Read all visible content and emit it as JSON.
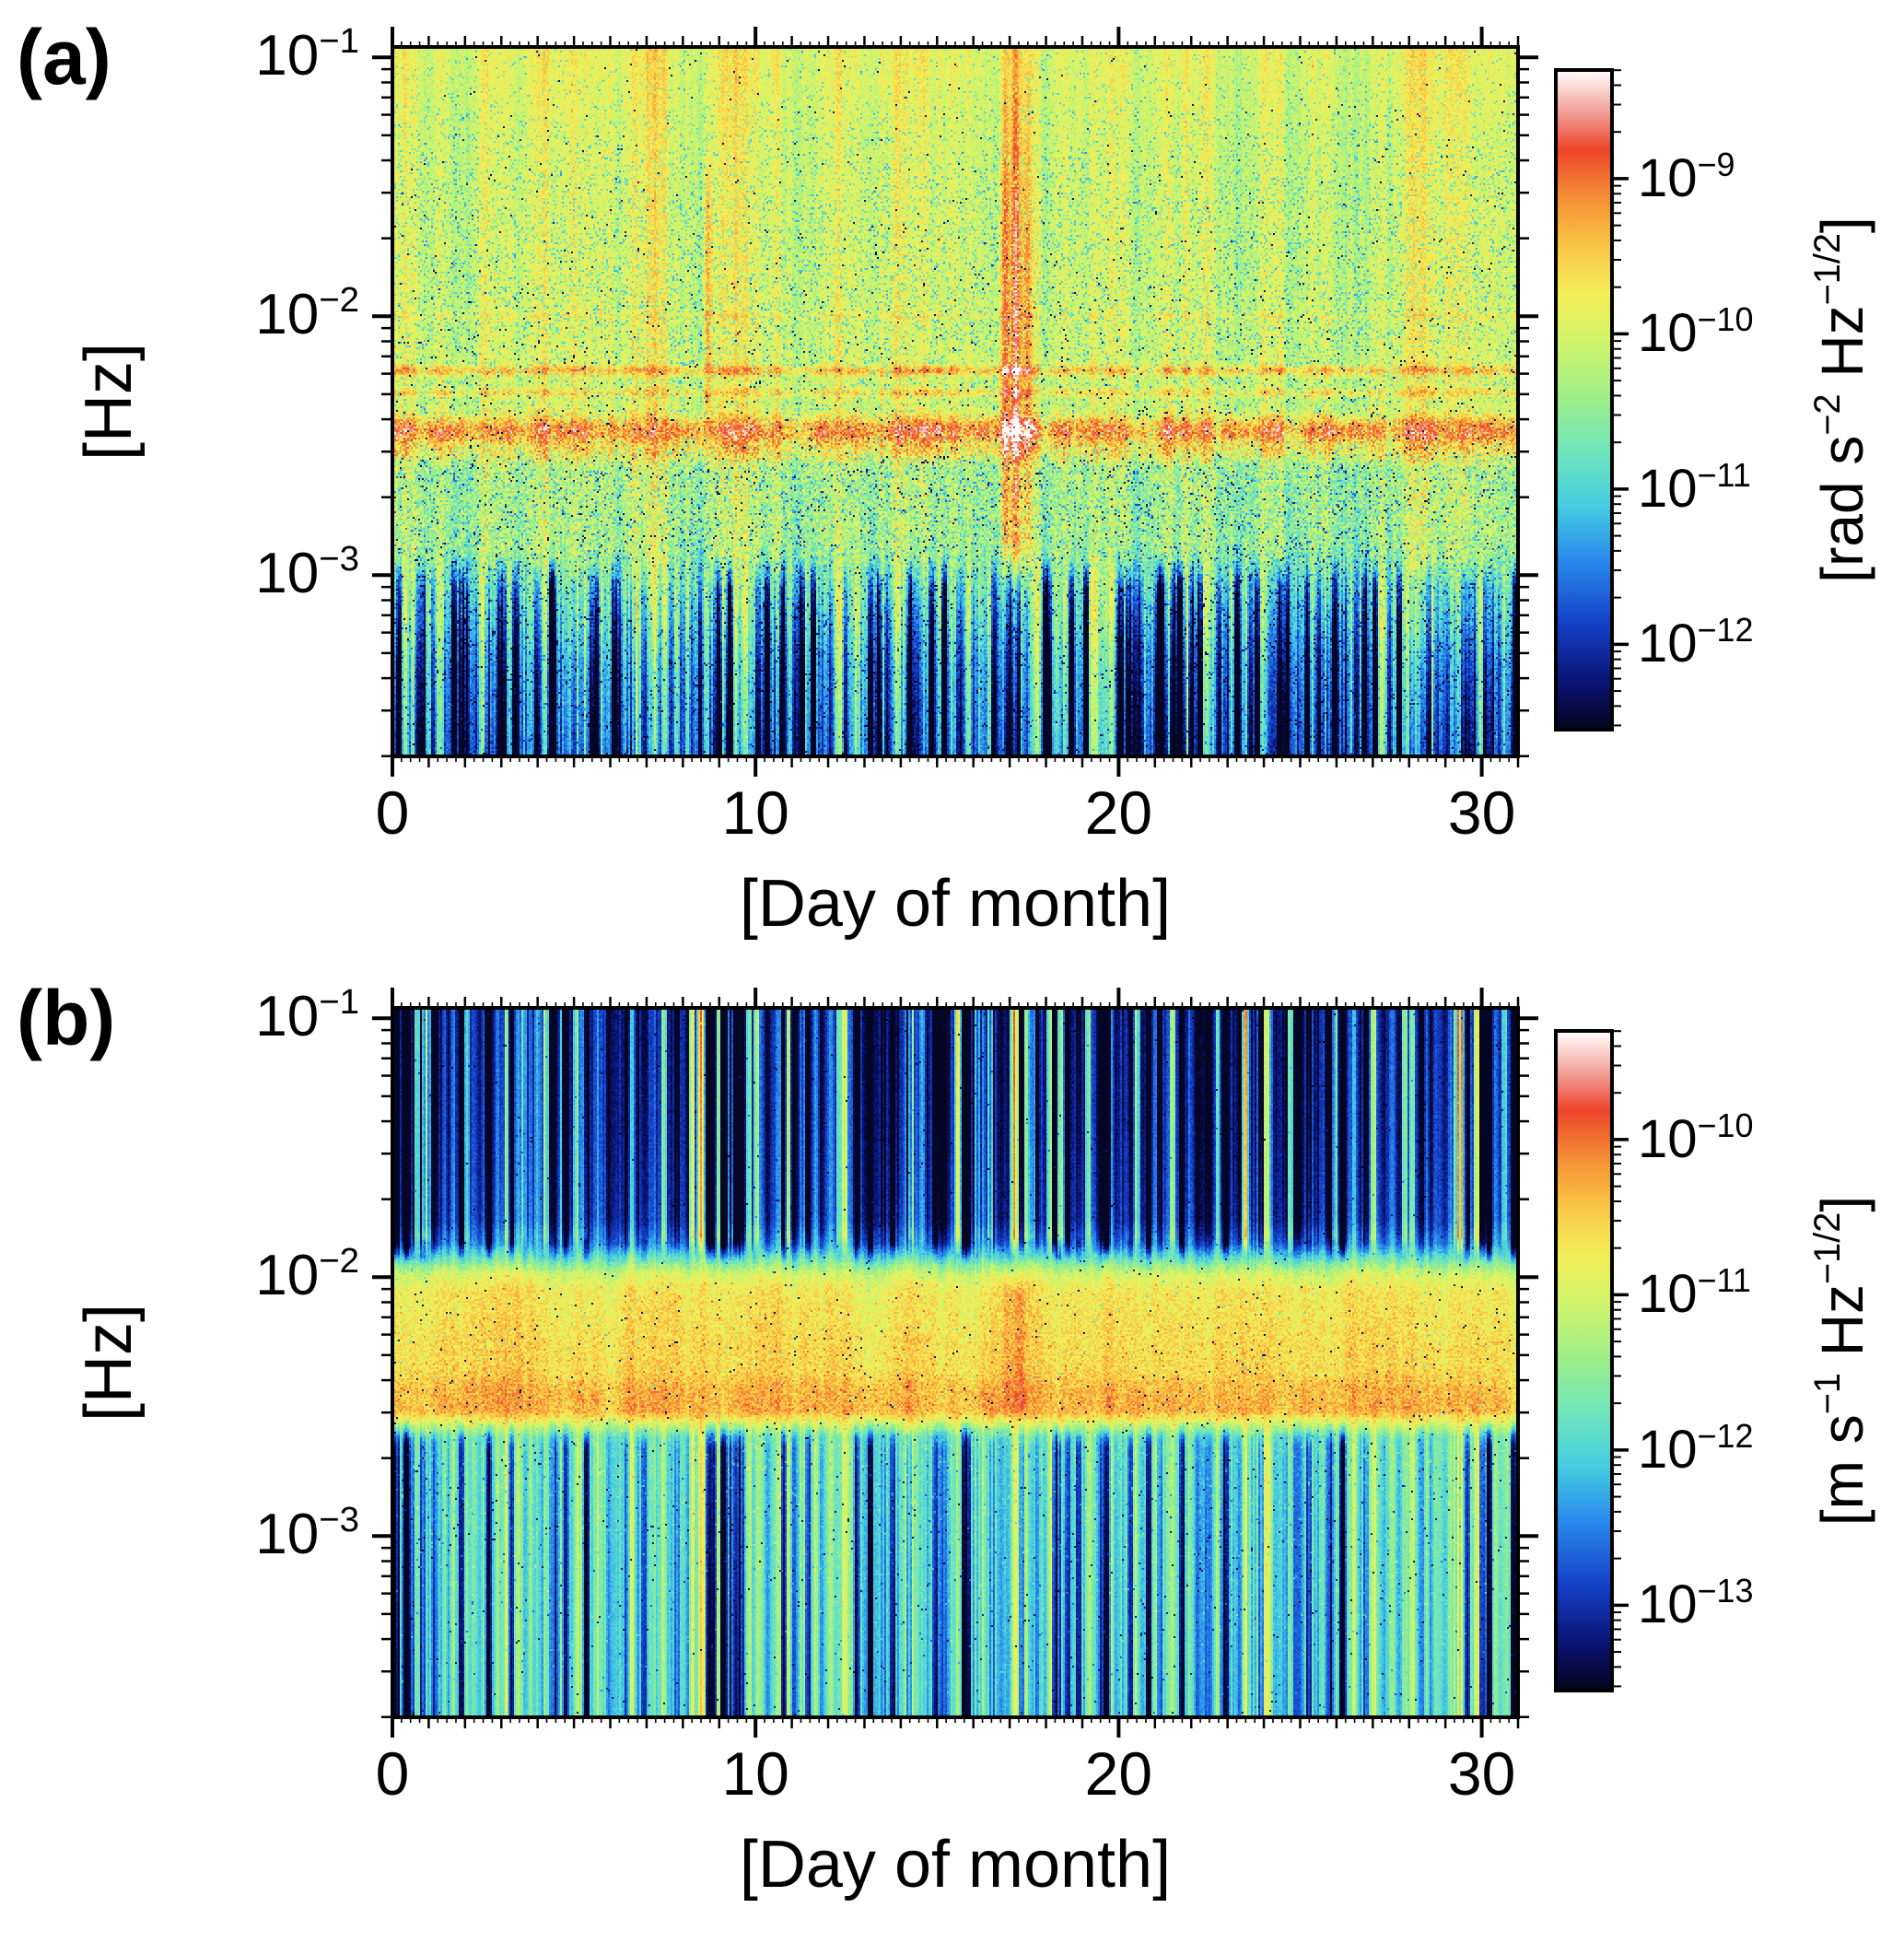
{
  "figure": {
    "colormap": [
      {
        "p": 0.0,
        "c": "#04041c"
      },
      {
        "p": 0.07,
        "c": "#0a1272"
      },
      {
        "p": 0.16,
        "c": "#1440c8"
      },
      {
        "p": 0.26,
        "c": "#2a8cec"
      },
      {
        "p": 0.34,
        "c": "#46cde0"
      },
      {
        "p": 0.42,
        "c": "#6fe5bc"
      },
      {
        "p": 0.5,
        "c": "#9cee8a"
      },
      {
        "p": 0.58,
        "c": "#ccf46d"
      },
      {
        "p": 0.66,
        "c": "#f4ee58"
      },
      {
        "p": 0.74,
        "c": "#f9c243"
      },
      {
        "p": 0.81,
        "c": "#f58b35"
      },
      {
        "p": 0.88,
        "c": "#ec4429"
      },
      {
        "p": 0.93,
        "c": "#f2968e"
      },
      {
        "p": 1.0,
        "c": "#ffffff"
      }
    ],
    "panels": [
      {
        "label": "(a)",
        "y_axis_label": "[Hz]",
        "x_axis_label": "[Day of month]",
        "y_ticks": [
          {
            "base": "10",
            "exp": "−1"
          },
          {
            "base": "10",
            "exp": "−2"
          },
          {
            "base": "10",
            "exp": "−3"
          }
        ],
        "x_ticks": [
          "0",
          "10",
          "20",
          "30"
        ],
        "colorbar_ticks": [
          {
            "base": "10",
            "exp": "−9"
          },
          {
            "base": "10",
            "exp": "−10"
          },
          {
            "base": "10",
            "exp": "−11"
          },
          {
            "base": "10",
            "exp": "−12"
          }
        ],
        "colorbar_unit": [
          {
            "t": "[rad s"
          },
          {
            "sup": "−2"
          },
          {
            "t": " Hz"
          },
          {
            "sup": "−1/2"
          },
          {
            "t": "]"
          }
        ]
      },
      {
        "label": "(b)",
        "y_axis_label": "[Hz]",
        "x_axis_label": "[Day of month]",
        "y_ticks": [
          {
            "base": "10",
            "exp": "−1"
          },
          {
            "base": "10",
            "exp": "−2"
          },
          {
            "base": "10",
            "exp": "−3"
          }
        ],
        "x_ticks": [
          "0",
          "10",
          "20",
          "30"
        ],
        "colorbar_ticks": [
          {
            "base": "10",
            "exp": "−10"
          },
          {
            "base": "10",
            "exp": "−11"
          },
          {
            "base": "10",
            "exp": "−12"
          },
          {
            "base": "10",
            "exp": "−13"
          }
        ],
        "colorbar_unit": [
          {
            "t": "[m s"
          },
          {
            "sup": "−1"
          },
          {
            "t": " Hz"
          },
          {
            "sup": "−1/2"
          },
          {
            "t": "]"
          }
        ]
      }
    ]
  },
  "chart_data": [
    {
      "type": "heatmap",
      "panel": "a",
      "title": "",
      "xlabel": "[Day of month]",
      "ylabel": "[Hz]",
      "zlabel": "[rad s^-2 Hz^-1/2]",
      "x_range": [
        0,
        31
      ],
      "y_log10_range": [
        -3.7,
        -0.96
      ],
      "z_log10_range": [
        -12.55,
        -8.3
      ],
      "x_tick_days": [
        0,
        10,
        20,
        30
      ],
      "y_tick_exponents": [
        -1,
        -2,
        -3
      ],
      "colorbar_tick_exponents": [
        -9,
        -10,
        -11,
        -12
      ],
      "colorbar_exp_top": -8.3,
      "colorbar_exp_bottom": -12.55,
      "features": [
        "persistent strong red band of angular acceleration noise near 3.5e-3 Hz (~1e-9.5 rad s^-2 Hz^-1/2)",
        "secondary orange harmonic lines near 5e-3 and 6e-3 Hz",
        "broadband disturbance around days 17-17.6 spanning ~1e-3 to 1e-1 Hz",
        "narrow transient near day 8.7 between ~5e-3 and 3e-2 Hz",
        "diffuse yellow-green noise floor above 1e-2 Hz with cyan speckle",
        "mottled green-cyan patches between 1e-3 and 3e-3 Hz",
        "low-amplitude blue vertical striping below 1e-3 Hz"
      ],
      "model": {
        "seed": 101,
        "days": 31,
        "f_top": -0.96,
        "f_bottom": -3.7,
        "dark_col_p": 0.15,
        "bright_col_p": 0.05,
        "base": [
          [
            -3.7,
            0.25
          ],
          [
            -3.35,
            0.32
          ],
          [
            -3.05,
            0.46
          ],
          [
            -2.88,
            0.54
          ],
          [
            -2.6,
            0.555
          ],
          [
            -2.38,
            0.595
          ],
          [
            -2.18,
            0.615
          ],
          [
            -1.3,
            0.62
          ],
          [
            -0.96,
            0.645
          ]
        ],
        "lines": [
          {
            "c": -2.445,
            "s": 0.04,
            "a": 0.25
          },
          {
            "c": -2.53,
            "s": 0.025,
            "a": 0.09
          },
          {
            "c": -2.21,
            "s": 0.014,
            "a": 0.15
          },
          {
            "c": -2.295,
            "s": 0.012,
            "a": 0.1
          },
          {
            "c": -2.0,
            "s": 0.01,
            "a": 0.05
          }
        ],
        "pixel_noise": [
          [
            -3.7,
            0.05
          ],
          [
            -3.1,
            0.06
          ],
          [
            -2.92,
            0.11
          ],
          [
            -2.55,
            0.12
          ],
          [
            -2.38,
            0.08
          ],
          [
            -2.2,
            0.06
          ],
          [
            -0.96,
            0.05
          ]
        ],
        "slow_amp": [
          [
            -3.7,
            0.02
          ],
          [
            -2.9,
            0.05
          ],
          [
            -2.2,
            0.04
          ],
          [
            -0.96,
            0.05
          ]
        ],
        "stripe_amp": [
          [
            -3.7,
            0.17
          ],
          [
            -3.15,
            0.17
          ],
          [
            -2.98,
            0.1
          ],
          [
            -2.88,
            0.04
          ],
          [
            -2.4,
            0.035
          ],
          [
            -0.96,
            0.03
          ]
        ],
        "dark_amp": [
          [
            -3.7,
            1.0
          ],
          [
            -3.05,
            0.7
          ],
          [
            -2.92,
            0.0
          ],
          [
            -0.96,
            0.0
          ]
        ],
        "bright_amp": [
          [
            -3.7,
            0.0
          ],
          [
            -0.96,
            0.0
          ]
        ],
        "cold_speckle": [
          [
            -3.7,
            0.02
          ],
          [
            -3.0,
            0.1
          ],
          [
            -2.6,
            0.16
          ],
          [
            -2.35,
            0.1
          ],
          [
            -2.05,
            0.18
          ],
          [
            -1.55,
            0.16
          ],
          [
            -1.15,
            0.07
          ],
          [
            -0.96,
            0.04
          ]
        ],
        "hot_speckle": [
          [
            -3.7,
            0.0
          ],
          [
            -2.6,
            0.03
          ],
          [
            -2.45,
            0.05
          ],
          [
            -2.3,
            0.02
          ],
          [
            -2.0,
            0.01
          ],
          [
            -0.96,
            0.0
          ]
        ],
        "dark_dot": [
          [
            -3.7,
            0.01
          ],
          [
            -2.6,
            0.02
          ],
          [
            -2.0,
            0.012
          ],
          [
            -1.4,
            0.006
          ],
          [
            -0.96,
            0.004
          ]
        ],
        "events": [
          {
            "day": 16.88,
            "sd": 0.1,
            "amp": 0.26,
            "f": [
              [
                -3.1,
                0
              ],
              [
                -2.85,
                1
              ],
              [
                -1.7,
                1
              ],
              [
                -1.05,
                0.45
              ],
              [
                -0.96,
                0.4
              ]
            ]
          },
          {
            "day": 17.18,
            "sd": 0.1,
            "amp": 0.3,
            "f": [
              [
                -3.1,
                0
              ],
              [
                -2.85,
                1
              ],
              [
                -1.7,
                1
              ],
              [
                -1.05,
                0.45
              ],
              [
                -0.96,
                0.4
              ]
            ]
          },
          {
            "day": 17.5,
            "sd": 0.09,
            "amp": 0.22,
            "f": [
              [
                -3.1,
                0
              ],
              [
                -2.85,
                1
              ],
              [
                -1.7,
                1
              ],
              [
                -1.05,
                0.45
              ],
              [
                -0.96,
                0.4
              ]
            ]
          },
          {
            "day": 8.68,
            "sd": 0.07,
            "amp": 0.16,
            "f": [
              [
                -2.45,
                0
              ],
              [
                -2.32,
                1
              ],
              [
                -1.6,
                1
              ],
              [
                -1.3,
                0
              ]
            ]
          }
        ]
      }
    },
    {
      "type": "heatmap",
      "panel": "b",
      "title": "",
      "xlabel": "[Day of month]",
      "ylabel": "[Hz]",
      "zlabel": "[m s^-1 Hz^-1/2]",
      "x_range": [
        0,
        31
      ],
      "y_log10_range": [
        -3.7,
        -0.96
      ],
      "z_log10_range": [
        -13.55,
        -9.3
      ],
      "x_tick_days": [
        0,
        10,
        20,
        30
      ],
      "y_tick_exponents": [
        -1,
        -2,
        -3
      ],
      "colorbar_tick_exponents": [
        -10,
        -11,
        -12,
        -13
      ],
      "colorbar_exp_top": -9.3,
      "colorbar_exp_bottom": -13.55,
      "features": [
        "dark blue low-amplitude region above ~1.5e-2 Hz with vertical striping",
        "narrow green-cyan transition band near 1.3e-2 Hz",
        "yellow-orange velocity-noise band between ~3e-3 and 1.2e-2 Hz",
        "orange-red concentration near 3e-3 Hz",
        "enhanced red patch near days 17-17.5",
        "cyan region with blue vertical stripes below 3e-3 Hz"
      ],
      "model": {
        "seed": 202,
        "days": 31,
        "f_top": -0.96,
        "f_bottom": -3.7,
        "dark_col_p": 0.12,
        "bright_col_p": 0.08,
        "base": [
          [
            -3.7,
            0.375
          ],
          [
            -3.0,
            0.395
          ],
          [
            -2.62,
            0.415
          ],
          [
            -2.52,
            0.7
          ],
          [
            -2.28,
            0.695
          ],
          [
            -2.05,
            0.665
          ],
          [
            -1.99,
            0.6
          ],
          [
            -1.93,
            0.42
          ],
          [
            -1.87,
            0.24
          ],
          [
            -1.78,
            0.15
          ],
          [
            -1.4,
            0.125
          ],
          [
            -0.96,
            0.115
          ]
        ],
        "lines": [
          {
            "c": -2.5,
            "s": 0.05,
            "a": 0.06
          },
          {
            "c": -2.42,
            "s": 0.03,
            "a": 0.03
          }
        ],
        "pixel_noise": [
          [
            -3.7,
            0.025
          ],
          [
            -2.62,
            0.035
          ],
          [
            -2.5,
            0.065
          ],
          [
            -2.05,
            0.065
          ],
          [
            -1.95,
            0.05
          ],
          [
            -1.85,
            0.03
          ],
          [
            -0.96,
            0.03
          ]
        ],
        "slow_amp": [
          [
            -3.7,
            0.03
          ],
          [
            -2.6,
            0.02
          ],
          [
            -2.2,
            0.025
          ],
          [
            -1.9,
            0.03
          ],
          [
            -0.96,
            0.03
          ]
        ],
        "stripe_amp": [
          [
            -3.7,
            0.11
          ],
          [
            -2.66,
            0.1
          ],
          [
            -2.54,
            0.015
          ],
          [
            -2.0,
            0.015
          ],
          [
            -1.93,
            0.05
          ],
          [
            -1.84,
            0.1
          ],
          [
            -0.96,
            0.11
          ]
        ],
        "dark_amp": [
          [
            -3.7,
            0.9
          ],
          [
            -2.66,
            0.7
          ],
          [
            -2.55,
            0.0
          ],
          [
            -1.95,
            0.0
          ],
          [
            -1.86,
            0.7
          ],
          [
            -0.96,
            1.0
          ]
        ],
        "bright_amp": [
          [
            -3.7,
            0.3
          ],
          [
            -2.6,
            0.2
          ],
          [
            -2.5,
            0.0
          ],
          [
            -1.92,
            0.0
          ],
          [
            -1.84,
            0.8
          ],
          [
            -0.96,
            1.0
          ]
        ],
        "cold_speckle": [
          [
            -3.7,
            0.004
          ],
          [
            -2.6,
            0.01
          ],
          [
            -2.2,
            0.012
          ],
          [
            -1.95,
            0.004
          ],
          [
            -0.96,
            0.006
          ]
        ],
        "hot_speckle": [
          [
            -3.7,
            0.0
          ],
          [
            -2.55,
            0.04
          ],
          [
            -2.35,
            0.035
          ],
          [
            -2.05,
            0.02
          ],
          [
            -1.97,
            0.0
          ],
          [
            -0.96,
            0.0
          ]
        ],
        "dark_dot": [
          [
            -3.7,
            0.004
          ],
          [
            -2.5,
            0.008
          ],
          [
            -2.2,
            0.008
          ],
          [
            -1.9,
            0.002
          ],
          [
            -0.96,
            0.002
          ]
        ],
        "events": [
          {
            "day": 16.95,
            "sd": 0.13,
            "amp": 0.09,
            "f": [
              [
                -2.56,
                0
              ],
              [
                -2.5,
                1
              ],
              [
                -2.05,
                1
              ],
              [
                -1.96,
                0
              ]
            ]
          },
          {
            "day": 17.3,
            "sd": 0.11,
            "amp": 0.11,
            "f": [
              [
                -2.56,
                0
              ],
              [
                -2.5,
                1
              ],
              [
                -2.05,
                1
              ],
              [
                -1.96,
                0
              ]
            ]
          }
        ]
      }
    }
  ]
}
